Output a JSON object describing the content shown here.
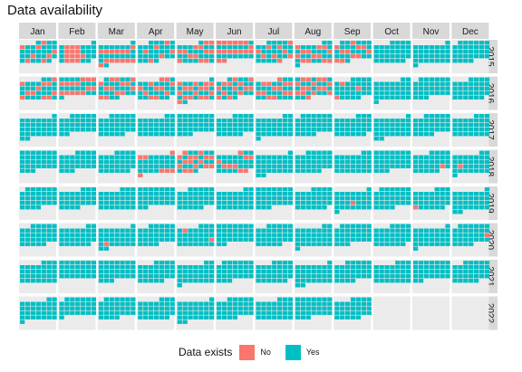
{
  "chart_data": {
    "type": "heatmap",
    "title": "Data availability",
    "months": [
      "Jan",
      "Feb",
      "Mar",
      "Apr",
      "May",
      "Jun",
      "Jul",
      "Aug",
      "Sep",
      "Oct",
      "Nov",
      "Dec"
    ],
    "years": [
      "2015",
      "2016",
      "2017",
      "2018",
      "2019",
      "2020",
      "2021",
      "2022"
    ],
    "layout": "calendar facets: rows = years, columns = months; one tile per day arranged in weeks",
    "legend": {
      "title": "Data exists",
      "entries": [
        {
          "label": "No",
          "color": "#F8766D"
        },
        {
          "label": "Yes",
          "color": "#00BFC4"
        }
      ],
      "placement": "bottom"
    },
    "panel_background": "#EBEBEB",
    "strip_background": "#D9D9D9",
    "missing_month_panels": [
      {
        "year": "2022",
        "months": [
          "Oct",
          "Nov",
          "Dec"
        ]
      }
    ],
    "days_without_data_approx": {
      "2015": {
        "Jan": 8,
        "Feb": 13,
        "Mar": 14,
        "Apr": 6,
        "May": 13,
        "Jun": 16,
        "Jul": 9,
        "Aug": 13,
        "Sep": 11,
        "Oct": 0,
        "Nov": 0,
        "Dec": 0
      },
      "2016": {
        "Jan": 11,
        "Feb": 14,
        "Mar": 13,
        "Apr": 11,
        "May": 16,
        "Jun": 13,
        "Jul": 13,
        "Aug": 16,
        "Sep": 3,
        "Oct": 0,
        "Nov": 0,
        "Dec": 0
      },
      "2017": {
        "Jan": 0,
        "Feb": 0,
        "Mar": 0,
        "Apr": 0,
        "May": 0,
        "Jun": 0,
        "Jul": 0,
        "Aug": 0,
        "Sep": 0,
        "Oct": 0,
        "Nov": 0,
        "Dec": 0
      },
      "2018": {
        "Jan": 0,
        "Feb": 0,
        "Mar": 0,
        "Apr": 7,
        "May": 16,
        "Jun": 9,
        "Jul": 0,
        "Aug": 0,
        "Sep": 0,
        "Oct": 0,
        "Nov": 1,
        "Dec": 1
      },
      "2019": {
        "Jan": 0,
        "Feb": 0,
        "Mar": 0,
        "Apr": 0,
        "May": 0,
        "Jun": 0,
        "Jul": 0,
        "Aug": 0,
        "Sep": 1,
        "Oct": 0,
        "Nov": 1,
        "Dec": 0
      },
      "2020": {
        "Jan": 0,
        "Feb": 0,
        "Mar": 1,
        "Apr": 0,
        "May": 2,
        "Jun": 0,
        "Jul": 0,
        "Aug": 0,
        "Sep": 0,
        "Oct": 0,
        "Nov": 0,
        "Dec": 1
      },
      "2021": {
        "Jan": 0,
        "Feb": 0,
        "Mar": 0,
        "Apr": 0,
        "May": 0,
        "Jun": 0,
        "Jul": 0,
        "Aug": 0,
        "Sep": 0,
        "Oct": 0,
        "Nov": 0,
        "Dec": 0
      },
      "2022": {
        "Jan": 0,
        "Feb": 0,
        "Mar": 0,
        "Apr": 0,
        "May": 0,
        "Jun": 0,
        "Jul": 0,
        "Aug": 0,
        "Sep": 0
      }
    }
  }
}
